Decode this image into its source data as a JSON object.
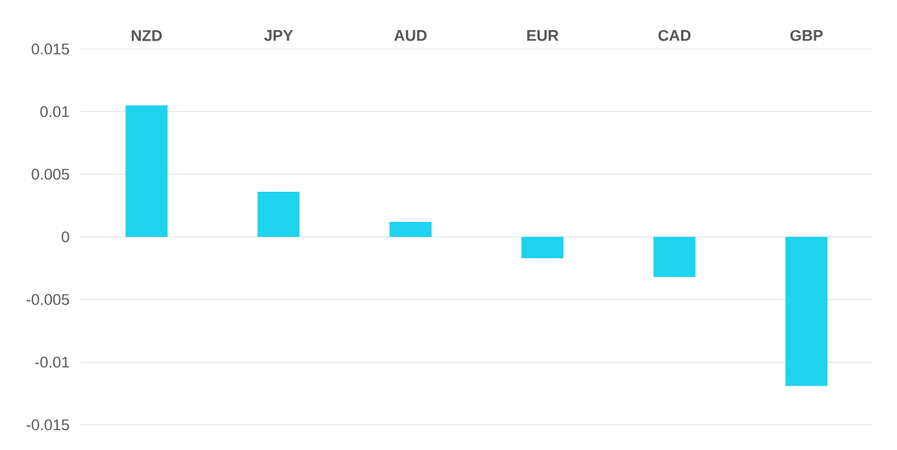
{
  "chart_data": {
    "type": "bar",
    "categories": [
      "NZD",
      "JPY",
      "AUD",
      "EUR",
      "CAD",
      "GBP"
    ],
    "values": [
      0.0105,
      0.0036,
      0.0012,
      -0.0017,
      -0.0032,
      -0.0119
    ],
    "color": "#1fd3ee",
    "ylim": [
      -0.015,
      0.015
    ],
    "yticks": [
      -0.015,
      -0.01,
      -0.005,
      0,
      0.005,
      0.01,
      0.015
    ],
    "grid": "y"
  }
}
